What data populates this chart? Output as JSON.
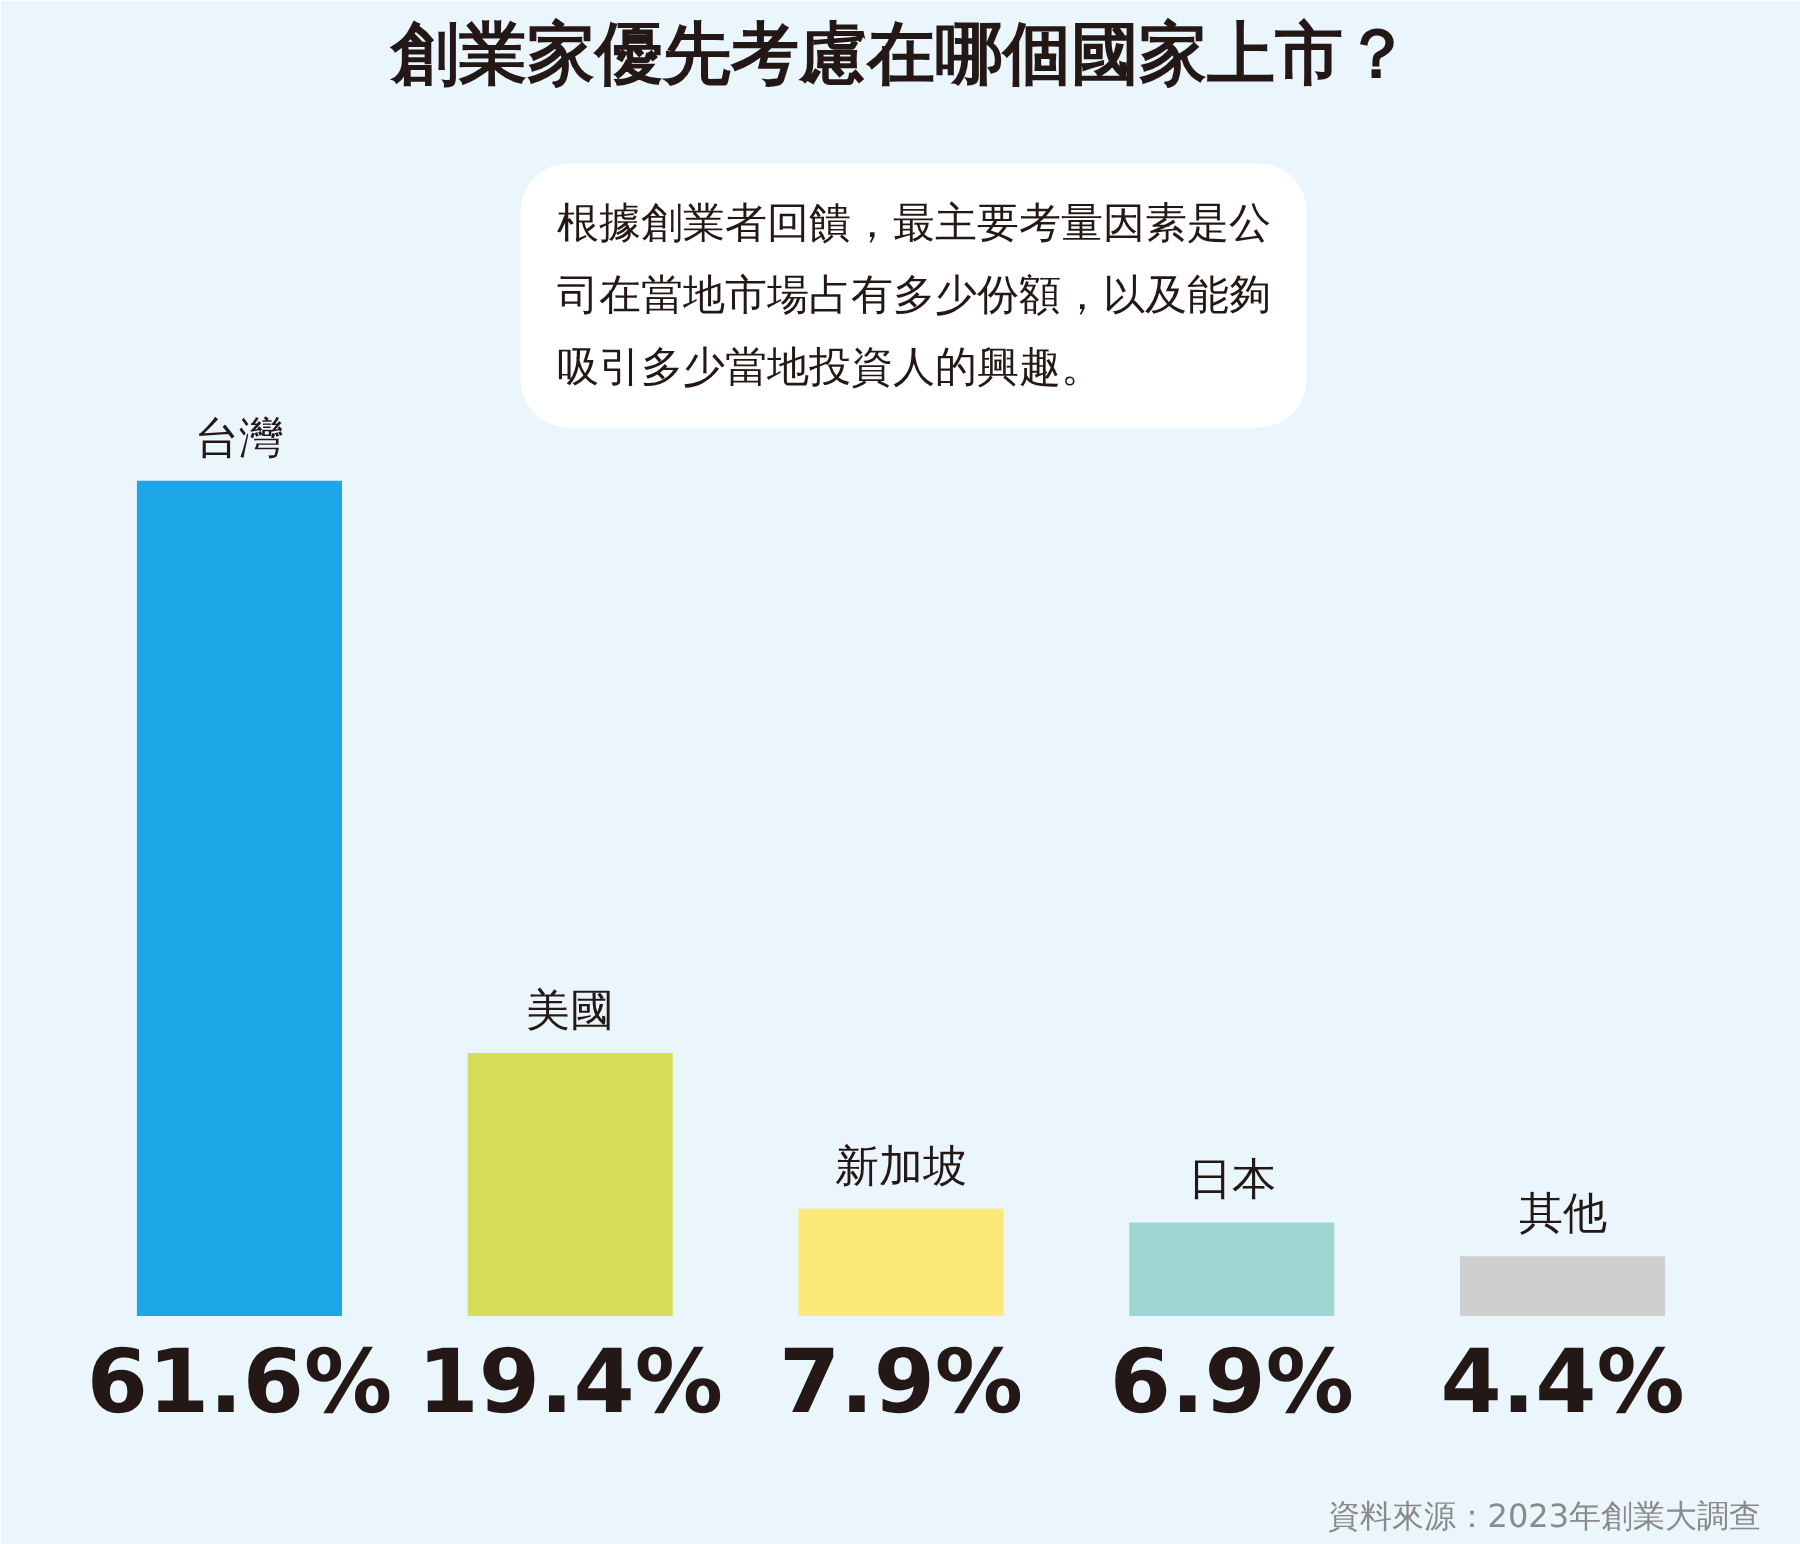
{
  "chart_data": {
    "type": "bar",
    "title": "創業家優先考慮在哪個國家上市？",
    "categories": [
      "台灣",
      "美國",
      "新加坡",
      "日本",
      "其他"
    ],
    "values": [
      61.6,
      19.4,
      7.9,
      6.9,
      4.4
    ],
    "colors": [
      "#1ea7e8",
      "#d5dd5a",
      "#fbe97a",
      "#9fd6d4",
      "#cfcfcf"
    ],
    "value_labels": [
      "61.6%",
      "19.4%",
      "7.9%",
      "6.9%",
      "4.4%"
    ],
    "annotations": [
      "根據創業者回饋，最主要考量因素是公司在當地市場占有多少份額，以及能夠吸引多少當地投資人的興趣。",
      "資料來源：2023年創業大調查"
    ],
    "tick_labels": false,
    "grid": false
  }
}
